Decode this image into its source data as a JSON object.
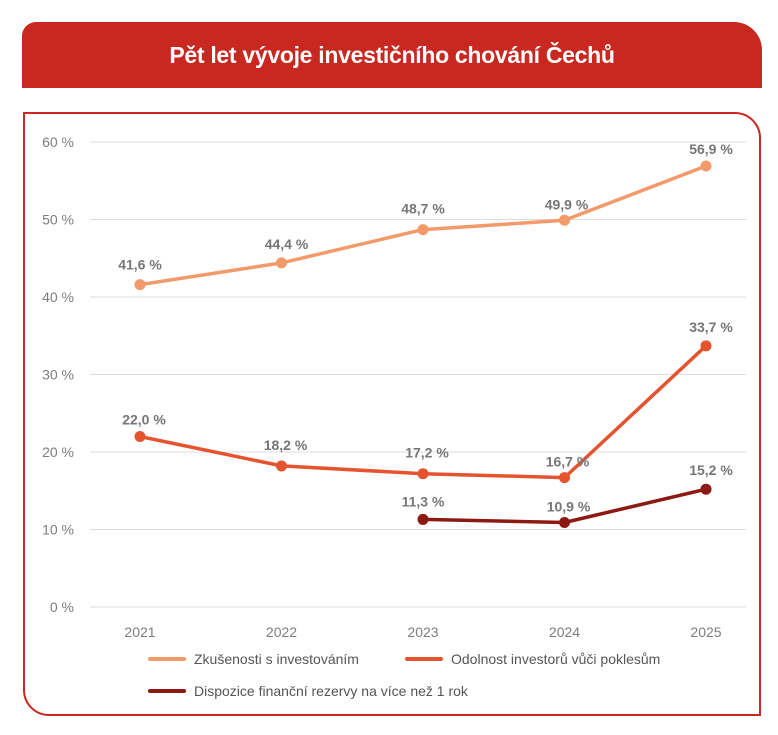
{
  "header": {
    "title": "Pět let vývoje investičního chování Čechů"
  },
  "colors": {
    "brand_red": "#c8281f",
    "grid": "#dddddd",
    "axis_text": "#7d7d7d"
  },
  "chart_data": {
    "type": "line",
    "title": "Pět let vývoje investičního chování Čechů",
    "x": [
      "2021",
      "2022",
      "2023",
      "2024",
      "2025"
    ],
    "ylim": [
      0,
      60
    ],
    "yticks": [
      0,
      10,
      20,
      30,
      40,
      50,
      60
    ],
    "ytick_labels": [
      "0 %",
      "10 %",
      "20 %",
      "30 %",
      "40 %",
      "50 %",
      "60 %"
    ],
    "grid": true,
    "legend_position": "bottom",
    "series": [
      {
        "name": "Zkušenosti s investováním",
        "color": "#f29a6a",
        "values": [
          41.6,
          44.4,
          48.7,
          49.9,
          56.9
        ],
        "labels": [
          "41,6 %",
          "44,4 %",
          "48,7 %",
          "49,9 %",
          "56,9 %"
        ]
      },
      {
        "name": "Odolnost investorů vůči poklesům",
        "color": "#e5532f",
        "values": [
          22.0,
          18.2,
          17.2,
          16.7,
          33.7
        ],
        "labels": [
          "22,0 %",
          "18,2 %",
          "17,2 %",
          "16,7 %",
          "33,7 %"
        ]
      },
      {
        "name": "Dispozice finanční rezervy na více než 1 rok",
        "color": "#8c1a12",
        "values": [
          null,
          null,
          11.3,
          10.9,
          15.2
        ],
        "labels": [
          null,
          null,
          "11,3 %",
          "10,9 %",
          "15,2 %"
        ]
      }
    ]
  }
}
